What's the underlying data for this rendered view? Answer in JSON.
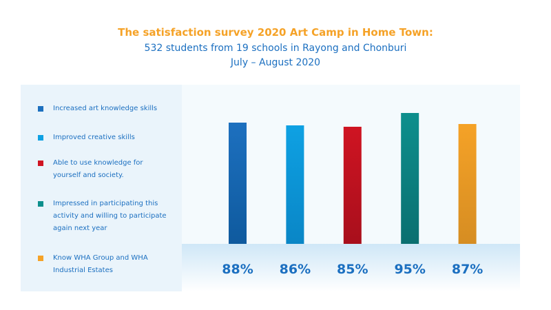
{
  "header": {
    "title": "The satisfaction survey 2020 Art Camp in Home Town:",
    "subtitle_line1": "532 students from 19 schools in Rayong and Chonburi",
    "subtitle_line2": "July – August 2020"
  },
  "legend": [
    {
      "lines": [
        "Increased art knowledge skills"
      ],
      "color": "#1d70bf"
    },
    {
      "lines": [
        "Improved creative skills"
      ],
      "color": "#0ea1e3"
    },
    {
      "lines": [
        "Able to use knowledge for",
        "yourself and society."
      ],
      "color": "#cf1422"
    },
    {
      "lines": [
        "Impressed in participating this",
        "activity and willing to participate",
        "again next year"
      ],
      "color": "#0d8f8d"
    },
    {
      "lines": [
        "Know WHA Group and WHA",
        "Industrial Estates"
      ],
      "color": "#f5a227"
    }
  ],
  "chart_data": {
    "type": "bar",
    "categories": [
      "Increased art knowledge skills",
      "Improved creative skills",
      "Able to use knowledge for yourself and society.",
      "Impressed in participating this activity and willing to participate again next year",
      "Know WHA Group and WHA Industrial Estates"
    ],
    "values": [
      88,
      86,
      85,
      95,
      87
    ],
    "labels": [
      "88%",
      "86%",
      "85%",
      "95%",
      "87%"
    ],
    "colors": [
      [
        "#1d70bf",
        "#0f5a9e"
      ],
      [
        "#0ea1e3",
        "#0a86c6"
      ],
      [
        "#cf1422",
        "#a80f1c"
      ],
      [
        "#0d8f8d",
        "#0a6f70"
      ],
      [
        "#f5a227",
        "#d68d22"
      ]
    ],
    "ylim": [
      0,
      100
    ]
  }
}
